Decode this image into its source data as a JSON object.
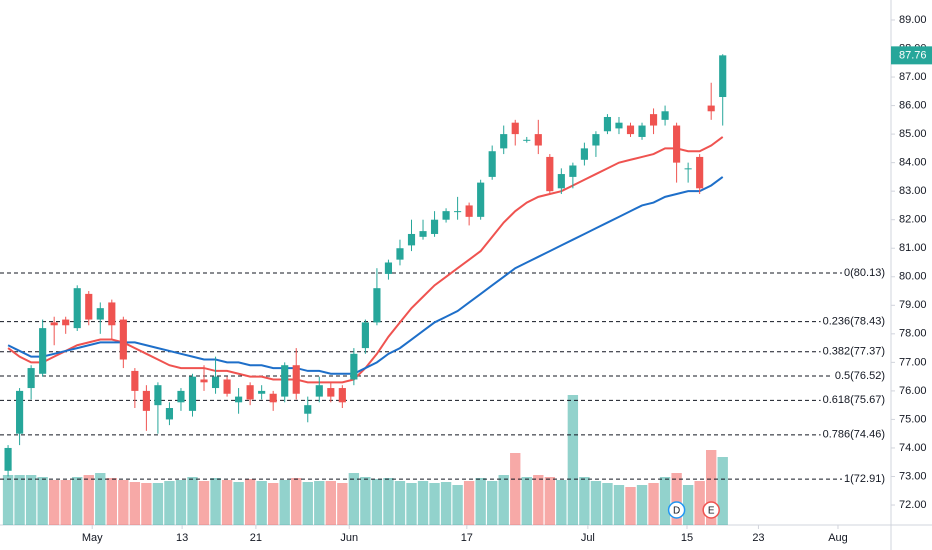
{
  "chart_data": {
    "type": "candlestick",
    "x": [
      0,
      1,
      2,
      3,
      4,
      5,
      6,
      7,
      8,
      9,
      10,
      11,
      12,
      13,
      14,
      15,
      16,
      17,
      18,
      19,
      20,
      21,
      22,
      23,
      24,
      25,
      26,
      27,
      28,
      29,
      30,
      31,
      32,
      33,
      34,
      35,
      36,
      37,
      38,
      39,
      40,
      41,
      42,
      43,
      44,
      45,
      46,
      47,
      48,
      49,
      50,
      51,
      52,
      53,
      54,
      55,
      56,
      57,
      58,
      59,
      60,
      61,
      62
    ],
    "open": [
      73.2,
      74.5,
      76.1,
      76.6,
      78.4,
      78.5,
      78.2,
      79.4,
      78.5,
      79.1,
      78.5,
      76.7,
      76.0,
      75.5,
      75.0,
      75.6,
      75.3,
      76.4,
      76.1,
      76.4,
      75.6,
      76.2,
      75.9,
      75.9,
      75.8,
      76.9,
      75.2,
      75.8,
      76.1,
      76.1,
      76.4,
      77.5,
      78.4,
      80.1,
      80.6,
      81.1,
      81.4,
      81.5,
      82.0,
      82.3,
      82.5,
      82.1,
      83.5,
      84.5,
      85.4,
      84.8,
      85.0,
      84.2,
      83.1,
      83.5,
      84.1,
      84.6,
      85.1,
      85.2,
      85.3,
      84.9,
      85.7,
      85.5,
      85.3,
      83.8,
      84.2,
      86.0,
      86.3
    ],
    "high": [
      74.1,
      76.1,
      76.9,
      78.5,
      78.6,
      78.6,
      79.7,
      79.5,
      79.1,
      79.2,
      78.6,
      76.8,
      76.2,
      76.3,
      75.6,
      76.1,
      76.6,
      76.9,
      77.2,
      76.5,
      76.1,
      76.3,
      76.2,
      76.0,
      77.0,
      77.5,
      75.8,
      76.5,
      76.3,
      76.2,
      77.5,
      78.5,
      80.3,
      80.6,
      81.3,
      82.0,
      82.0,
      82.3,
      82.4,
      82.8,
      82.6,
      83.4,
      84.6,
      85.3,
      85.5,
      84.9,
      85.5,
      84.3,
      83.8,
      84.0,
      84.7,
      85.1,
      85.7,
      85.6,
      85.4,
      85.4,
      85.9,
      86.0,
      85.4,
      84.0,
      84.3,
      86.8,
      87.8
    ],
    "low": [
      73.0,
      74.1,
      75.7,
      76.5,
      77.6,
      78.0,
      78.1,
      78.3,
      78.0,
      77.8,
      76.8,
      75.4,
      74.6,
      74.5,
      74.8,
      75.3,
      75.1,
      76.0,
      75.9,
      75.8,
      75.2,
      75.5,
      75.7,
      75.3,
      75.6,
      75.7,
      74.9,
      75.6,
      75.6,
      75.4,
      76.2,
      77.3,
      78.3,
      79.9,
      80.4,
      80.9,
      81.3,
      81.4,
      81.9,
      82.0,
      81.8,
      82.0,
      83.4,
      84.3,
      84.6,
      84.7,
      84.3,
      82.9,
      82.9,
      83.1,
      83.9,
      84.2,
      85.0,
      85.0,
      84.9,
      84.8,
      85.0,
      85.3,
      83.3,
      83.3,
      82.9,
      85.5,
      85.3
    ],
    "close": [
      74.0,
      76.0,
      76.8,
      78.2,
      78.3,
      78.3,
      79.6,
      78.5,
      78.9,
      78.3,
      77.1,
      76.0,
      75.3,
      76.2,
      75.4,
      76.0,
      76.5,
      76.3,
      76.5,
      75.9,
      75.8,
      75.7,
      76.0,
      75.6,
      76.9,
      75.9,
      75.5,
      76.2,
      75.8,
      75.6,
      77.3,
      78.4,
      79.6,
      80.5,
      81.0,
      81.5,
      81.6,
      82.0,
      82.3,
      82.3,
      82.1,
      83.3,
      84.4,
      85.0,
      85.0,
      84.8,
      84.6,
      83.0,
      83.6,
      83.9,
      84.5,
      85.0,
      85.6,
      85.4,
      85.0,
      85.3,
      85.3,
      85.8,
      84.0,
      83.8,
      83.1,
      85.8,
      87.76
    ],
    "volume": [
      50,
      50,
      50,
      48,
      45,
      45,
      48,
      50,
      52,
      47,
      45,
      43,
      42,
      42,
      44,
      45,
      48,
      44,
      47,
      45,
      43,
      46,
      44,
      42,
      45,
      47,
      43,
      44,
      44,
      42,
      52,
      48,
      46,
      47,
      44,
      42,
      44,
      42,
      43,
      40,
      44,
      47,
      44,
      50,
      72,
      48,
      50,
      48,
      45,
      130,
      48,
      44,
      42,
      40,
      38,
      40,
      42,
      48,
      52,
      40,
      44,
      75,
      68
    ],
    "up_color": "#26a69a",
    "down_color": "#ef5350",
    "series": [
      {
        "color": "#ef5350",
        "values": [
          77.5,
          77.2,
          77.0,
          77.0,
          77.2,
          77.4,
          77.6,
          77.7,
          77.8,
          77.8,
          77.7,
          77.5,
          77.3,
          77.1,
          76.9,
          76.8,
          76.8,
          76.8,
          76.7,
          76.7,
          76.6,
          76.5,
          76.5,
          76.4,
          76.4,
          76.4,
          76.3,
          76.3,
          76.3,
          76.3,
          76.4,
          76.8,
          77.3,
          77.9,
          78.4,
          78.9,
          79.3,
          79.7,
          80.0,
          80.3,
          80.6,
          80.9,
          81.4,
          81.9,
          82.3,
          82.6,
          82.8,
          82.9,
          83.0,
          83.2,
          83.4,
          83.6,
          83.8,
          84.0,
          84.1,
          84.2,
          84.3,
          84.5,
          84.5,
          84.4,
          84.4,
          84.6,
          84.9
        ]
      },
      {
        "color": "#1e6fc9",
        "values": [
          77.6,
          77.4,
          77.2,
          77.2,
          77.3,
          77.4,
          77.5,
          77.6,
          77.7,
          77.7,
          77.7,
          77.7,
          77.6,
          77.5,
          77.4,
          77.3,
          77.2,
          77.1,
          77.1,
          77.0,
          77.0,
          76.9,
          76.9,
          76.8,
          76.8,
          76.8,
          76.7,
          76.7,
          76.6,
          76.6,
          76.6,
          76.8,
          77.0,
          77.3,
          77.5,
          77.8,
          78.1,
          78.4,
          78.6,
          78.8,
          79.1,
          79.4,
          79.7,
          80.0,
          80.3,
          80.5,
          80.7,
          80.9,
          81.1,
          81.3,
          81.5,
          81.7,
          81.9,
          82.1,
          82.3,
          82.5,
          82.6,
          82.8,
          82.9,
          83.0,
          83.0,
          83.2,
          83.5
        ]
      }
    ],
    "fib_levels": [
      {
        "label": "0(80.13)",
        "value": 80.13
      },
      {
        "label": "0.236(78.43)",
        "value": 78.43
      },
      {
        "label": "0.382(77.37)",
        "value": 77.37
      },
      {
        "label": "0.5(76.52)",
        "value": 76.52
      },
      {
        "label": "0.618(75.67)",
        "value": 75.67
      },
      {
        "label": "0.786(74.46)",
        "value": 74.46
      },
      {
        "label": "1(72.91)",
        "value": 72.91
      }
    ],
    "last_price": 87.76,
    "events": [
      {
        "label": "D",
        "x": 58
      },
      {
        "label": "E",
        "x": 61
      }
    ],
    "xlim": [
      -0.7,
      76.6
    ],
    "xticks": [
      {
        "value": 7.3,
        "label": "May"
      },
      {
        "value": 15.1,
        "label": "13"
      },
      {
        "value": 21.5,
        "label": "21"
      },
      {
        "value": 29.6,
        "label": "Jun"
      },
      {
        "value": 39.8,
        "label": "17"
      },
      {
        "value": 50.3,
        "label": "Jul"
      },
      {
        "value": 58.9,
        "label": "15"
      },
      {
        "value": 65.1,
        "label": "23"
      },
      {
        "value": 72.0,
        "label": "Aug"
      }
    ],
    "ylim": [
      71.3,
      89.7
    ],
    "yticks": [
      {
        "value": 72,
        "label": "72.00"
      },
      {
        "value": 73,
        "label": "73.00"
      },
      {
        "value": 74,
        "label": "74.00"
      },
      {
        "value": 75,
        "label": "75.00"
      },
      {
        "value": 76,
        "label": "76.00"
      },
      {
        "value": 77,
        "label": "77.00"
      },
      {
        "value": 78,
        "label": "78.00"
      },
      {
        "value": 79,
        "label": "79.00"
      },
      {
        "value": 80,
        "label": "80.00"
      },
      {
        "value": 81,
        "label": "81.00"
      },
      {
        "value": 82,
        "label": "82.00"
      },
      {
        "value": 83,
        "label": "83.00"
      },
      {
        "value": 84,
        "label": "84.00"
      },
      {
        "value": 85,
        "label": "85.00"
      },
      {
        "value": 86,
        "label": "86.00"
      },
      {
        "value": 87,
        "label": "87.00"
      },
      {
        "value": 88,
        "label": "88.00"
      },
      {
        "value": 89,
        "label": "89.00"
      }
    ]
  }
}
